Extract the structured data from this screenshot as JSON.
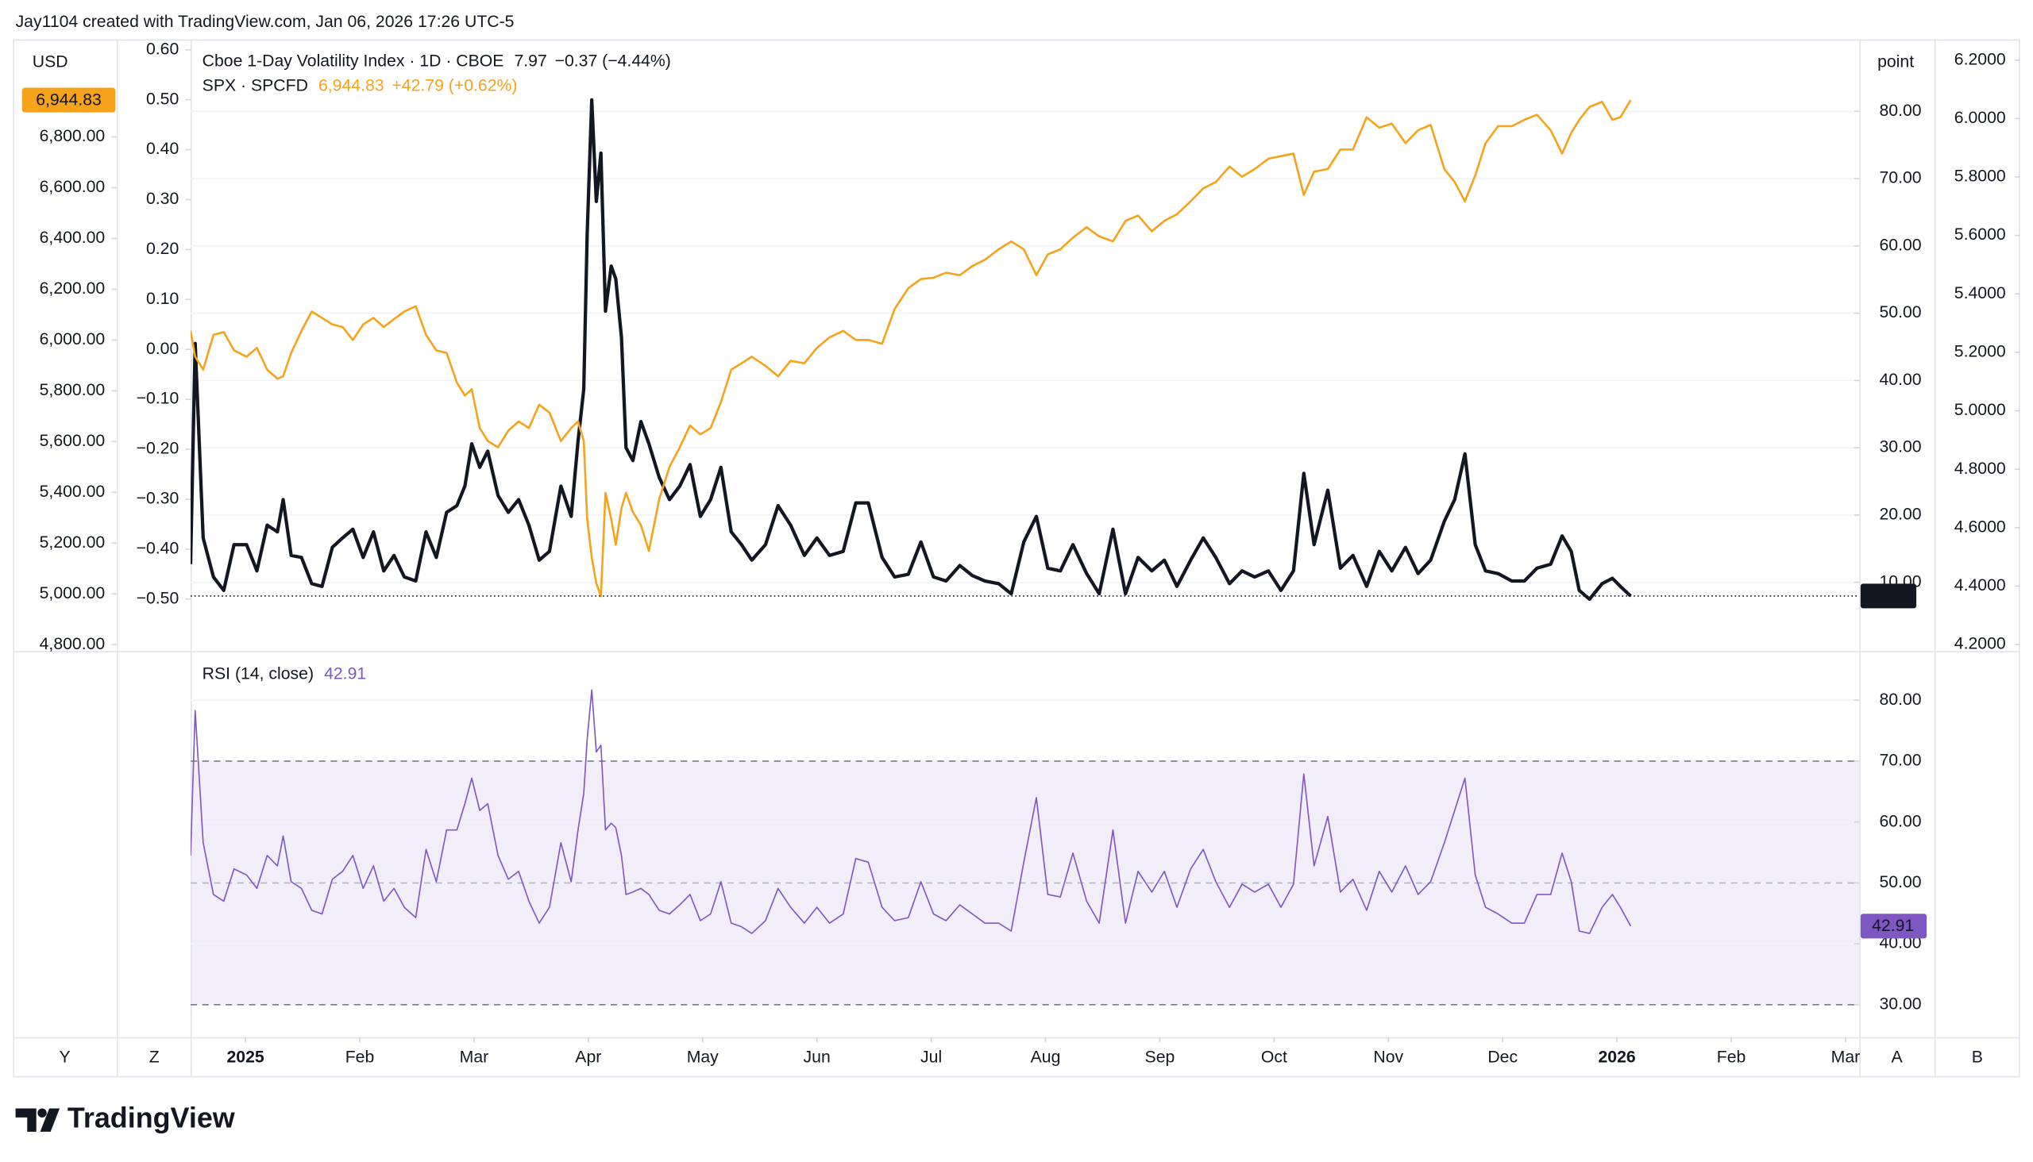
{
  "header": {
    "credit": "Jay1104 created with TradingView.com, Jan 06, 2026 17:26 UTC-5",
    "brand": "TradingView"
  },
  "toolbar": {
    "left": [
      "Y",
      "Z"
    ],
    "right": [
      "A",
      "B"
    ]
  },
  "chart_data": [
    {
      "type": "line",
      "x": [
        -0.48,
        -0.44,
        -0.37,
        -0.28,
        -0.19,
        -0.1,
        0.01,
        0.1,
        0.19,
        0.28,
        0.33,
        0.4,
        0.49,
        0.58,
        0.67,
        0.76,
        0.85,
        0.94,
        1.03,
        1.12,
        1.21,
        1.3,
        1.39,
        1.49,
        1.58,
        1.67,
        1.76,
        1.85,
        1.92,
        1.98,
        2.05,
        2.12,
        2.21,
        2.3,
        2.39,
        2.48,
        2.57,
        2.66,
        2.76,
        2.85,
        2.91,
        2.96,
        2.99,
        3.03,
        3.07,
        3.11,
        3.15,
        3.2,
        3.24,
        3.29,
        3.33,
        3.39,
        3.46,
        3.53,
        3.62,
        3.71,
        3.8,
        3.89,
        3.98,
        4.07,
        4.16,
        4.25,
        4.34,
        4.43,
        4.55,
        4.66,
        4.77,
        4.89,
        5.0,
        5.11,
        5.23,
        5.34,
        5.45,
        5.57,
        5.68,
        5.8,
        5.91,
        6.02,
        6.13,
        6.25,
        6.36,
        6.47,
        6.59,
        6.7,
        6.81,
        6.92,
        7.02,
        7.13,
        7.24,
        7.36,
        7.47,
        7.59,
        7.7,
        7.81,
        7.93,
        8.04,
        8.15,
        8.27,
        8.38,
        8.49,
        8.61,
        8.72,
        8.83,
        8.95,
        9.06,
        9.17,
        9.26,
        9.35,
        9.47,
        9.58,
        9.69,
        9.81,
        9.92,
        10.03,
        10.15,
        10.26,
        10.37,
        10.49,
        10.58,
        10.67,
        10.76,
        10.85,
        10.96,
        11.08,
        11.19,
        11.3,
        11.42,
        11.52,
        11.6,
        11.67,
        11.76,
        11.87,
        11.96,
        12.03,
        12.12
      ],
      "xlim": [
        -0.48,
        14.12
      ],
      "xticks": [
        {
          "value": 0,
          "label": "2025"
        },
        {
          "value": 1,
          "label": "Feb"
        },
        {
          "value": 2,
          "label": "Mar"
        },
        {
          "value": 3,
          "label": "Apr"
        },
        {
          "value": 4,
          "label": "May"
        },
        {
          "value": 5,
          "label": "Jun"
        },
        {
          "value": 6,
          "label": "Jul"
        },
        {
          "value": 7,
          "label": "Aug"
        },
        {
          "value": 8,
          "label": "Sep"
        },
        {
          "value": 9,
          "label": "Oct"
        },
        {
          "value": 10,
          "label": "Nov"
        },
        {
          "value": 11,
          "label": "Dec"
        },
        {
          "value": 12,
          "label": "2026"
        },
        {
          "value": 13,
          "label": "Feb"
        },
        {
          "value": 14,
          "label": "Mar"
        }
      ],
      "ylabel": "USD",
      "ylim": [
        4775,
        7184
      ],
      "yticks": [
        {
          "value": 4800,
          "label": "4,800.00"
        },
        {
          "value": 5000,
          "label": "5,000.00"
        },
        {
          "value": 5200,
          "label": "5,200.00"
        },
        {
          "value": 5400,
          "label": "5,400.00"
        },
        {
          "value": 5600,
          "label": "5,600.00"
        },
        {
          "value": 5800,
          "label": "5,800.00"
        },
        {
          "value": 6000,
          "label": "6,000.00"
        },
        {
          "value": 6200,
          "label": "6,200.00"
        },
        {
          "value": 6400,
          "label": "6,400.00"
        },
        {
          "value": 6600,
          "label": "6,600.00"
        },
        {
          "value": 6800,
          "label": "6,800.00"
        }
      ],
      "y2label": "point",
      "y2lim": [
        -0.2,
        90.7
      ],
      "y2ticks": [
        {
          "value": 10,
          "label": "10.00"
        },
        {
          "value": 20,
          "label": "20.00"
        },
        {
          "value": 30,
          "label": "30.00"
        },
        {
          "value": 40,
          "label": "40.00"
        },
        {
          "value": 50,
          "label": "50.00"
        },
        {
          "value": 60,
          "label": "60.00"
        },
        {
          "value": 70,
          "label": "70.00"
        },
        {
          "value": 80,
          "label": "80.00"
        }
      ],
      "y3lim": [
        -0.604,
        0.621
      ],
      "y3ticks": [
        {
          "value": -0.5,
          "label": "−0.50"
        },
        {
          "value": -0.4,
          "label": "−0.40"
        },
        {
          "value": -0.3,
          "label": "−0.30"
        },
        {
          "value": -0.2,
          "label": "−0.20"
        },
        {
          "value": -0.1,
          "label": "−0.10"
        },
        {
          "value": 0,
          "label": "0.00"
        },
        {
          "value": 0.1,
          "label": "0.10"
        },
        {
          "value": 0.2,
          "label": "0.20"
        },
        {
          "value": 0.3,
          "label": "0.30"
        },
        {
          "value": 0.4,
          "label": "0.40"
        },
        {
          "value": 0.5,
          "label": "0.50"
        },
        {
          "value": 0.6,
          "label": "0.60"
        }
      ],
      "y4lim": [
        4.178,
        6.271
      ],
      "y4ticks": [
        {
          "value": 4.2,
          "label": "4.2000"
        },
        {
          "value": 4.4,
          "label": "4.4000"
        },
        {
          "value": 4.6,
          "label": "4.6000"
        },
        {
          "value": 4.8,
          "label": "4.8000"
        },
        {
          "value": 5.0,
          "label": "5.0000"
        },
        {
          "value": 5.2,
          "label": "5.2000"
        },
        {
          "value": 5.4,
          "label": "5.4000"
        },
        {
          "value": 5.6,
          "label": "5.6000"
        },
        {
          "value": 5.8,
          "label": "5.8000"
        },
        {
          "value": 6.0,
          "label": "6.0000"
        },
        {
          "value": 6.2,
          "label": "6.2000"
        }
      ],
      "grid": true,
      "last_value_line": true,
      "series": [
        {
          "name": "Cboe 1-Day Volatility Index · 1D · CBOE",
          "color": "#131722",
          "axis": "y2",
          "change_label": "−0.37 (−4.44%)",
          "values": [
            12.7,
            45.5,
            16.6,
            10.8,
            8.8,
            15.6,
            15.6,
            11.7,
            18.5,
            17.5,
            22.3,
            14.0,
            13.7,
            9.8,
            9.4,
            15.2,
            16.6,
            17.9,
            13.7,
            17.5,
            11.7,
            14.0,
            10.8,
            10.2,
            17.5,
            13.7,
            20.4,
            21.4,
            24.3,
            30.6,
            27.1,
            29.5,
            22.9,
            20.4,
            22.3,
            18.5,
            13.3,
            14.6,
            24.3,
            19.8,
            31.0,
            38.7,
            61.8,
            81.7,
            66.6,
            73.8,
            50.3,
            57.0,
            55.1,
            46.4,
            30.0,
            28.1,
            33.9,
            30.6,
            25.6,
            22.3,
            24.3,
            27.5,
            19.8,
            22.3,
            27.1,
            17.5,
            15.6,
            13.3,
            15.6,
            21.4,
            18.5,
            14.0,
            16.6,
            14.0,
            14.6,
            21.8,
            21.8,
            13.7,
            10.8,
            11.2,
            16.0,
            10.8,
            10.2,
            12.5,
            11.0,
            10.2,
            9.8,
            8.3,
            16.0,
            19.8,
            12.1,
            11.7,
            15.6,
            11.3,
            8.3,
            17.9,
            8.3,
            13.7,
            11.7,
            13.3,
            9.4,
            13.3,
            16.6,
            13.7,
            9.8,
            11.7,
            10.8,
            11.7,
            8.8,
            11.7,
            26.2,
            15.6,
            23.7,
            12.1,
            14.0,
            9.4,
            14.6,
            11.7,
            15.2,
            11.3,
            13.3,
            19.1,
            22.3,
            29.1,
            15.6,
            11.7,
            11.3,
            10.2,
            10.2,
            12.1,
            12.7,
            16.9,
            14.6,
            8.8,
            7.5,
            9.8,
            10.6,
            9.4,
            7.97
          ]
        },
        {
          "name": "SPX · SPCFD",
          "color": "#f7a21b",
          "axis": "y",
          "last_label": "6,944.83",
          "change_label": "+42.79 (+0.62%)",
          "values": [
            6036,
            5934,
            5883,
            6020,
            6031,
            5959,
            5934,
            5969,
            5883,
            5847,
            5857,
            5949,
            6036,
            6112,
            6087,
            6061,
            6051,
            6000,
            6061,
            6087,
            6051,
            6082,
            6112,
            6133,
            6020,
            5959,
            5949,
            5832,
            5781,
            5806,
            5653,
            5602,
            5577,
            5643,
            5679,
            5653,
            5745,
            5714,
            5602,
            5653,
            5679,
            5602,
            5296,
            5143,
            5041,
            4990,
            5398,
            5296,
            5194,
            5337,
            5398,
            5322,
            5271,
            5169,
            5373,
            5500,
            5577,
            5663,
            5628,
            5653,
            5755,
            5883,
            5908,
            5934,
            5898,
            5857,
            5918,
            5908,
            5969,
            6010,
            6036,
            6000,
            6000,
            5985,
            6122,
            6204,
            6240,
            6245,
            6265,
            6255,
            6291,
            6316,
            6357,
            6388,
            6357,
            6255,
            6337,
            6357,
            6403,
            6444,
            6408,
            6388,
            6469,
            6490,
            6428,
            6469,
            6495,
            6546,
            6597,
            6622,
            6683,
            6643,
            6673,
            6714,
            6724,
            6734,
            6571,
            6663,
            6673,
            6750,
            6750,
            6877,
            6836,
            6852,
            6775,
            6826,
            6847,
            6673,
            6622,
            6546,
            6648,
            6775,
            6842,
            6842,
            6867,
            6887,
            6826,
            6734,
            6816,
            6867,
            6918,
            6938,
            6867,
            6877,
            6944.83
          ]
        }
      ]
    },
    {
      "type": "line",
      "ylim": [
        24.68,
        87.87
      ],
      "yticks": [
        {
          "value": 30,
          "label": "30.00"
        },
        {
          "value": 40,
          "label": "40.00"
        },
        {
          "value": 50,
          "label": "50.00"
        },
        {
          "value": 60,
          "label": "60.00"
        },
        {
          "value": 70,
          "label": "70.00"
        },
        {
          "value": 80,
          "label": "80.00"
        }
      ],
      "band": [
        30,
        70
      ],
      "midline": 50,
      "grid": true,
      "series": [
        {
          "name": "RSI (14, close)",
          "color": "#7e57c2",
          "values": [
            54.5,
            78.3,
            56.6,
            48.1,
            47.0,
            52.3,
            51.3,
            49.1,
            54.5,
            52.8,
            57.7,
            50.2,
            49.1,
            45.5,
            44.9,
            50.6,
            51.9,
            54.5,
            49.1,
            52.8,
            47.0,
            49.1,
            46.0,
            44.3,
            55.5,
            50.2,
            58.7,
            58.7,
            63.0,
            67.2,
            61.9,
            63.0,
            54.5,
            50.6,
            51.9,
            47.0,
            43.4,
            46.0,
            56.6,
            50.2,
            58.7,
            64.7,
            73.6,
            81.7,
            71.5,
            72.6,
            58.7,
            59.8,
            59.1,
            54.5,
            48.1,
            48.5,
            49.1,
            48.1,
            45.5,
            44.9,
            46.4,
            48.1,
            43.8,
            44.9,
            50.2,
            43.4,
            42.8,
            41.7,
            43.8,
            49.1,
            46.0,
            43.4,
            46.0,
            43.4,
            44.9,
            54.0,
            53.4,
            46.0,
            43.8,
            44.3,
            50.2,
            44.9,
            43.8,
            46.4,
            44.9,
            43.4,
            43.4,
            42.1,
            53.4,
            64.0,
            48.1,
            47.7,
            54.9,
            47.0,
            43.4,
            58.7,
            43.4,
            51.9,
            48.5,
            51.9,
            46.0,
            52.3,
            55.5,
            50.2,
            46.0,
            49.8,
            48.5,
            49.8,
            46.0,
            49.8,
            67.9,
            52.8,
            60.9,
            48.5,
            50.6,
            45.5,
            51.9,
            48.5,
            52.8,
            48.1,
            50.2,
            56.6,
            61.9,
            67.2,
            51.3,
            46.0,
            44.9,
            43.4,
            43.4,
            48.1,
            48.1,
            54.9,
            50.2,
            42.1,
            41.7,
            46.0,
            48.1,
            46.0,
            42.91
          ]
        }
      ]
    }
  ]
}
